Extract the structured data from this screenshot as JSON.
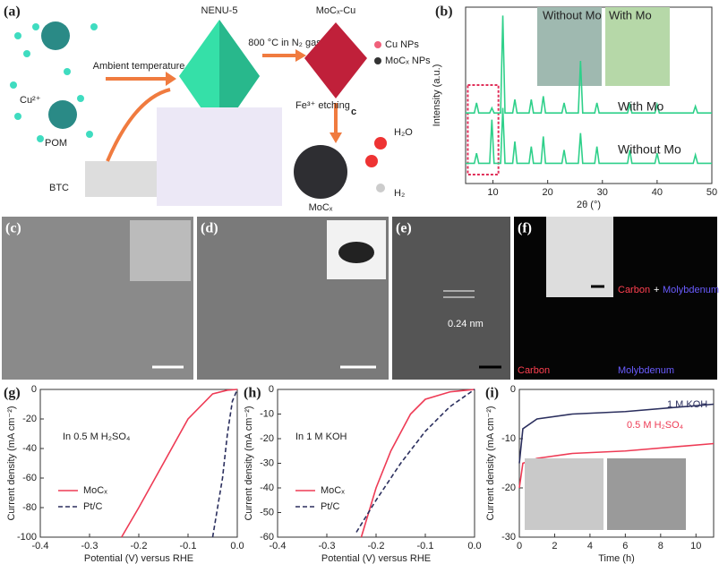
{
  "panels": {
    "a": {
      "label": "(a)",
      "cu": "Cu²⁺",
      "pom": "POM",
      "btc": "BTC",
      "ambient": "Ambient temperature",
      "nenu": "NENU-5",
      "heat": "800 °C in N₂ gas",
      "mocxcu": "MoCₓ-Cu",
      "cu_np": "Cu NPs",
      "mocx_np": "MoCₓ NPs",
      "etch": "Fe³⁺ etching",
      "c": "c",
      "h2o": "H₂O",
      "h2": "H₂",
      "mocx": "MoCₓ"
    },
    "c": {
      "label": "(c)"
    },
    "d": {
      "label": "(d)"
    },
    "e": {
      "label": "(e)",
      "spacing": "0.24 nm"
    },
    "f": {
      "label": "(f)",
      "carbon": "Carbon",
      "plus": "+",
      "molybdenum": "Molybdenum"
    }
  },
  "chart_data": [
    {
      "type": "line",
      "label": "(b)",
      "xlabel": "2θ (°)",
      "ylabel": "Intensity (a.u.)",
      "inset_left": "Without Mo",
      "inset_right": "With Mo",
      "x": [
        5,
        6.6,
        7,
        7.4,
        9.4,
        9.8,
        10.2,
        11.4,
        11.8,
        12.2,
        13.6,
        14,
        14.4,
        16.6,
        17,
        17.4,
        18.8,
        19.2,
        19.6,
        22.6,
        23,
        23.4,
        25.6,
        26,
        26.4,
        28.6,
        29,
        29.4,
        34.6,
        35,
        35.4,
        39.6,
        40,
        40.4,
        46.6,
        47,
        47.4,
        50
      ],
      "series": [
        {
          "name": "With Mo",
          "color": "#2fd08a",
          "values": [
            42,
            42,
            48,
            42,
            42,
            45,
            42,
            42,
            100,
            42,
            42,
            50,
            42,
            42,
            50,
            42,
            42,
            52,
            42,
            42,
            48,
            42,
            42,
            73,
            42,
            42,
            48,
            42,
            42,
            47,
            42,
            42,
            47,
            42,
            42,
            46,
            42,
            42
          ]
        },
        {
          "name": "Without Mo",
          "color": "#2fd08a",
          "values": [
            12,
            12,
            18,
            12,
            12,
            38,
            12,
            12,
            45,
            12,
            12,
            25,
            12,
            12,
            22,
            12,
            12,
            28,
            12,
            12,
            20,
            12,
            12,
            30,
            12,
            12,
            22,
            12,
            12,
            20,
            12,
            12,
            18,
            12,
            12,
            17,
            12,
            12
          ]
        }
      ],
      "xlim": [
        5,
        50
      ],
      "ylim": [
        0,
        105
      ],
      "xticks": [
        10,
        20,
        30,
        40,
        50
      ]
    },
    {
      "type": "line",
      "label": "(g)",
      "xlabel": "Potential (V) versus RHE",
      "ylabel": "Current density (mA cm⁻²)",
      "annotation": "In 0.5 M H₂SO₄",
      "series": [
        {
          "name": "MoCₓ",
          "color": "#ee3b55",
          "dash": false,
          "x": [
            -0.235,
            -0.2,
            -0.15,
            -0.1,
            -0.05,
            -0.02,
            0
          ],
          "values": [
            -100,
            -80,
            -50,
            -20,
            -3,
            -0.5,
            0
          ]
        },
        {
          "name": "Pt/C",
          "color": "#2b2f5e",
          "dash": true,
          "x": [
            -0.05,
            -0.03,
            -0.02,
            -0.01,
            0
          ],
          "values": [
            -100,
            -60,
            -30,
            -8,
            0
          ]
        }
      ],
      "xlim": [
        -0.4,
        0
      ],
      "ylim": [
        -100,
        0
      ],
      "xticks": [
        -0.4,
        -0.3,
        -0.2,
        -0.1,
        {
          "value": 0,
          "label": "0.0"
        }
      ],
      "yticks": [
        -100,
        -80,
        -60,
        -40,
        -20,
        0
      ]
    },
    {
      "type": "line",
      "label": "(h)",
      "xlabel": "Potential (V) versus RHE",
      "ylabel": "Current density (mA cm⁻²)",
      "annotation": "In 1 M KOH",
      "series": [
        {
          "name": "MoCₓ",
          "color": "#ee3b55",
          "dash": false,
          "x": [
            -0.23,
            -0.2,
            -0.17,
            -0.13,
            -0.1,
            -0.05,
            0
          ],
          "values": [
            -60,
            -40,
            -25,
            -10,
            -4,
            -1,
            0
          ]
        },
        {
          "name": "Pt/C",
          "color": "#2b2f5e",
          "dash": true,
          "x": [
            -0.24,
            -0.2,
            -0.15,
            -0.1,
            -0.05,
            0
          ],
          "values": [
            -58,
            -45,
            -30,
            -17,
            -7,
            0
          ]
        }
      ],
      "xlim": [
        -0.4,
        0
      ],
      "ylim": [
        -60,
        0
      ],
      "xticks": [
        -0.4,
        -0.3,
        -0.2,
        -0.1,
        {
          "value": 0,
          "label": "0.0"
        }
      ],
      "yticks": [
        -60,
        -50,
        -40,
        -30,
        -20,
        -10,
        0
      ]
    },
    {
      "type": "line",
      "label": "(i)",
      "xlabel": "Time (h)",
      "ylabel": "Current density (mA cm⁻²)",
      "series": [
        {
          "name": "1 M KOH",
          "color": "#2b2f5e",
          "dash": false,
          "x": [
            0,
            0.2,
            1,
            3,
            6,
            11
          ],
          "values": [
            -15,
            -8,
            -6,
            -5,
            -4.5,
            -3
          ]
        },
        {
          "name": "0.5 M H₂SO₄",
          "color": "#ee3b55",
          "dash": false,
          "x": [
            0,
            0.2,
            1,
            3,
            6,
            11
          ],
          "values": [
            -20,
            -15,
            -14,
            -13,
            -12.5,
            -11
          ]
        }
      ],
      "xlim": [
        0,
        11
      ],
      "ylim": [
        -30,
        0
      ],
      "xticks": [
        0,
        2,
        4,
        6,
        8,
        10
      ],
      "yticks": [
        -30,
        -20,
        -10,
        0
      ]
    }
  ]
}
